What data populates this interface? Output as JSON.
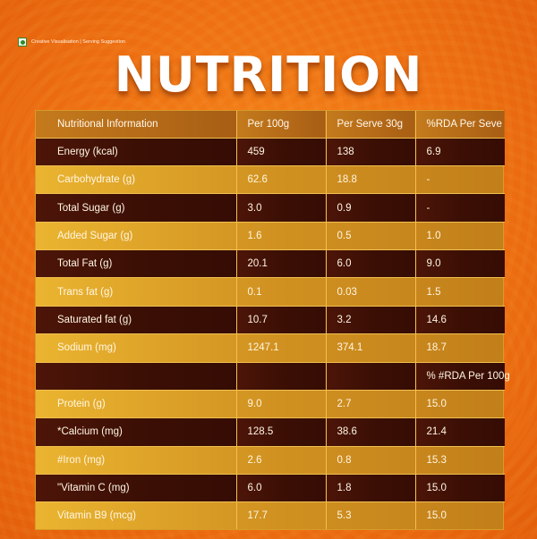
{
  "disclaimer": "Creative Visualisation | Serving Suggestion",
  "title": "NUTRITION",
  "table": {
    "headers": [
      "Nutritional Information",
      "Per 100g",
      "Per Serve 30g",
      "%RDA Per Seve"
    ],
    "rows": [
      {
        "style": "dark",
        "cells": [
          "Energy (kcal)",
          "459",
          "138",
          "6.9"
        ]
      },
      {
        "style": "light",
        "cells": [
          "Carbohydrate (g)",
          "62.6",
          "18.8",
          "-"
        ]
      },
      {
        "style": "dark",
        "cells": [
          "Total Sugar (g)",
          "3.0",
          "0.9",
          "-"
        ]
      },
      {
        "style": "light",
        "cells": [
          "Added Sugar (g)",
          "1.6",
          "0.5",
          "1.0"
        ]
      },
      {
        "style": "dark",
        "cells": [
          "Total Fat (g)",
          "20.1",
          "6.0",
          "9.0"
        ]
      },
      {
        "style": "light",
        "cells": [
          "Trans fat (g)",
          "0.1",
          "0.03",
          "1.5"
        ]
      },
      {
        "style": "dark",
        "cells": [
          "Saturated fat (g)",
          "10.7",
          "3.2",
          "14.6"
        ]
      },
      {
        "style": "light",
        "cells": [
          "Sodium (mg)",
          "1247.1",
          "374.1",
          "18.7"
        ]
      },
      {
        "style": "dark",
        "cells": [
          "",
          "",
          "",
          "% #RDA Per 100g"
        ]
      },
      {
        "style": "light",
        "cells": [
          "Protein (g)",
          "9.0",
          "2.7",
          "15.0"
        ]
      },
      {
        "style": "dark",
        "cells": [
          "*Calcium (mg)",
          "128.5",
          "38.6",
          "21.4"
        ]
      },
      {
        "style": "light",
        "cells": [
          "#Iron (mg)",
          "2.6",
          "0.8",
          "15.3"
        ]
      },
      {
        "style": "dark",
        "cells": [
          "\"Vitamin C (mg)",
          "6.0",
          "1.8",
          "15.0"
        ]
      },
      {
        "style": "light",
        "cells": [
          "Vitamin B9 (mcg)",
          "17.7",
          "5.3",
          "15.0"
        ]
      }
    ]
  },
  "colors": {
    "background": "#ee7012",
    "dark_row": "#3c0f05",
    "gold_row": "#d19221",
    "title": "#ffffff"
  }
}
